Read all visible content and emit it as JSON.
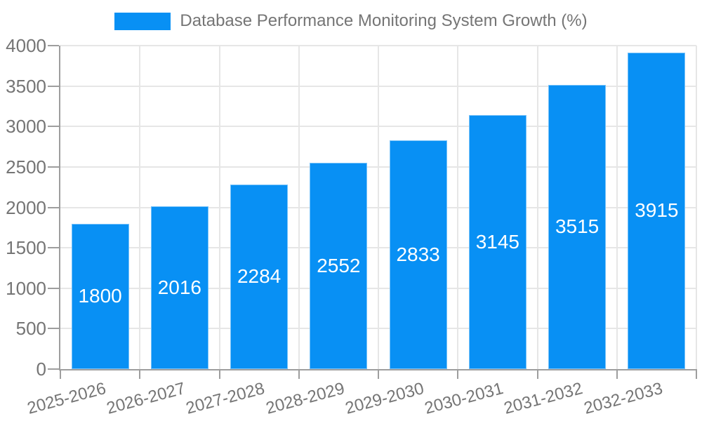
{
  "chart_data": {
    "type": "bar",
    "title": "Database Performance Monitoring System Growth (%)",
    "categories": [
      "2025-2026",
      "2026-2027",
      "2027-2028",
      "2028-2029",
      "2029-2030",
      "2030-2031",
      "2031-2032",
      "2032-2033"
    ],
    "values": [
      1800,
      2016,
      2284,
      2552,
      2833,
      3145,
      3515,
      3915
    ],
    "xlabel": "",
    "ylabel": "",
    "ylim": [
      0,
      4000
    ],
    "yticks": [
      0,
      500,
      1000,
      1500,
      2000,
      2500,
      3000,
      3500,
      4000
    ],
    "grid": true,
    "legend_position": "top-center",
    "x_label_rotation_deg": -15,
    "colors": {
      "bar_fill": "#0890f4",
      "bar_value_text": "#ffffff",
      "axis_line": "#9e9e9e",
      "gridline": "#e6e6e6",
      "tick_label_text": "#757575",
      "background": "#ffffff"
    }
  }
}
